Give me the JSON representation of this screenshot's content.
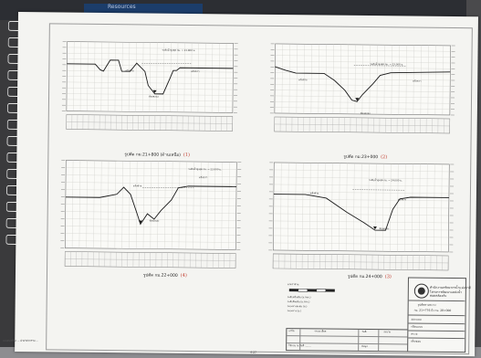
{
  "desk": {
    "corner_label": "Resources"
  },
  "panels": [
    {
      "caption": "รูปตัด กม.21+800 (ด้านเหนือ)",
      "handwritten": "(1)",
      "note": "ระดับน้ำสูงสุด กม. = 21.800 ม.",
      "left_mark": "ตลิ่งซ้าย",
      "right_mark": "ตลิ่งขวา",
      "bottom_mark": "ท้องคลอง"
    },
    {
      "caption": "รูปตัด กม.23+000",
      "handwritten": "(2)",
      "note": "ระดับน้ำสูงสุด กม. = 23.000 ม.",
      "left_mark": "ตลิ่งซ้าย",
      "right_mark": "ตลิ่งขวา",
      "bottom_mark": "ท้องคลอง"
    },
    {
      "caption": "รูปตัด กม.22+000",
      "handwritten": "(4)",
      "note": "ระดับน้ำสูงสุด กม. = 22.000 ม.",
      "left_mark": "ตลิ่งซ้าย",
      "right_mark": "ตลิ่งขวา",
      "bottom_mark": "ท้องคลอง"
    },
    {
      "caption": "รูปตัด กม.24+000",
      "handwritten": "(3)",
      "note": "ระดับน้ำสูงสุด กม. = 24.000 ม.",
      "left_mark": "ตลิ่งซ้าย",
      "right_mark": "ตลิ่งขวา",
      "bottom_mark": "ท้องคลอง"
    }
  ],
  "legend": {
    "title": "มาตราส่วน",
    "rows": [
      "ระดับตลิ่งเดิม (ม.รทก.)",
      "ระดับดินเดิม (ม.รทก.)",
      "ระยะทางสะสม (ม.)",
      "ระยะทาง (ม.)"
    ]
  },
  "title_block": {
    "org_line1": "สำนักงานทรัพยากรน้ำแห่งชาติ",
    "org_line2": "โครงการพัฒนาแหล่งน้ำ",
    "org_line3": "สอดคล้องกับ",
    "drawing_title": "รูปตัดตามขวาง",
    "drawing_no": "กม. 21+776 ถึง กม. 28+000",
    "rows": [
      "ออกแบบ",
      "เขียนแบบ",
      "ตรวจ",
      "เห็นชอบ"
    ]
  },
  "revision": {
    "headers": [
      "แก้ไข",
      "รายละเอียด",
      "วันที่",
      "ลงนาม"
    ],
    "note": "ใช้แบบ ณ วันที่ ........",
    "sheet": "ข้อมูล"
  },
  "footer": {
    "left": "แบบก่อสร้าง ... ฝ่ายวิศวกรรม ...",
    "page": "4-27"
  }
}
